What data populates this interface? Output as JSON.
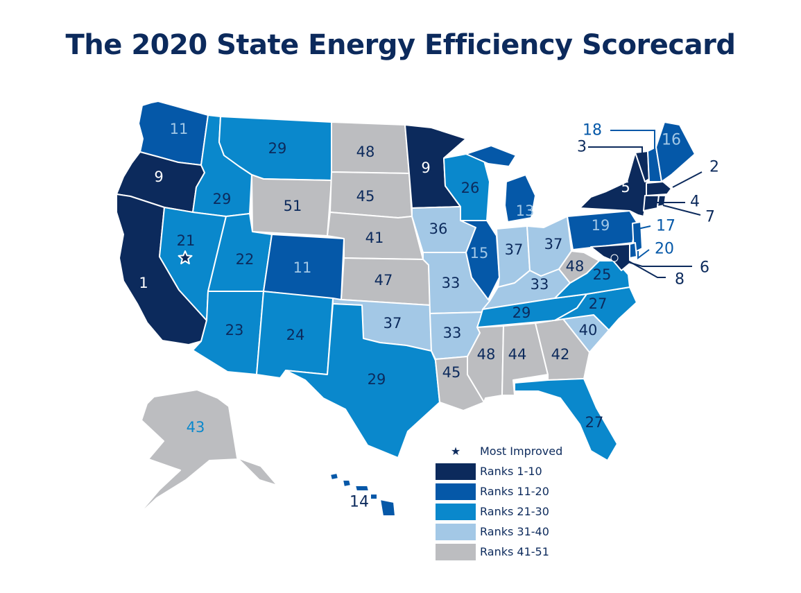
{
  "title": "The 2020 State Energy Efficiency Scorecard",
  "colors": {
    "rank_1_10": "#0c2a5c",
    "rank_11_20": "#0558a8",
    "rank_21_30": "#0a88cc",
    "rank_31_40": "#a3c8e6",
    "rank_41_51": "#bcbdc0",
    "outline": "#ffffff",
    "title": "#0c2a5c"
  },
  "legend": {
    "most_improved": "Most Improved",
    "items": [
      {
        "label": "Ranks 1-10",
        "color": "#0c2a5c"
      },
      {
        "label": "Ranks 11-20",
        "color": "#0558a8"
      },
      {
        "label": "Ranks 21-30",
        "color": "#0a88cc"
      },
      {
        "label": "Ranks 31-40",
        "color": "#a3c8e6"
      },
      {
        "label": "Ranks 41-51",
        "color": "#bcbdc0"
      }
    ]
  },
  "most_improved_state": "NV",
  "states": {
    "WA": {
      "rank": "11",
      "tier": "rank_11_20"
    },
    "OR": {
      "rank": "9",
      "tier": "rank_1_10"
    },
    "CA": {
      "rank": "1",
      "tier": "rank_1_10"
    },
    "ID": {
      "rank": "29",
      "tier": "rank_21_30"
    },
    "NV": {
      "rank": "21",
      "tier": "rank_21_30"
    },
    "MT": {
      "rank": "29",
      "tier": "rank_21_30"
    },
    "WY": {
      "rank": "51",
      "tier": "rank_41_51"
    },
    "UT": {
      "rank": "22",
      "tier": "rank_21_30"
    },
    "CO": {
      "rank": "11",
      "tier": "rank_11_20"
    },
    "AZ": {
      "rank": "23",
      "tier": "rank_21_30"
    },
    "NM": {
      "rank": "24",
      "tier": "rank_21_30"
    },
    "ND": {
      "rank": "48",
      "tier": "rank_41_51"
    },
    "SD": {
      "rank": "45",
      "tier": "rank_41_51"
    },
    "NE": {
      "rank": "41",
      "tier": "rank_41_51"
    },
    "KS": {
      "rank": "47",
      "tier": "rank_41_51"
    },
    "OK": {
      "rank": "37",
      "tier": "rank_31_40"
    },
    "TX": {
      "rank": "29",
      "tier": "rank_21_30"
    },
    "MN": {
      "rank": "9",
      "tier": "rank_1_10"
    },
    "IA": {
      "rank": "36",
      "tier": "rank_31_40"
    },
    "MO": {
      "rank": "33",
      "tier": "rank_31_40"
    },
    "AR": {
      "rank": "33",
      "tier": "rank_31_40"
    },
    "LA": {
      "rank": "45",
      "tier": "rank_41_51"
    },
    "WI": {
      "rank": "26",
      "tier": "rank_21_30"
    },
    "IL": {
      "rank": "15",
      "tier": "rank_11_20"
    },
    "MI": {
      "rank": "13",
      "tier": "rank_11_20"
    },
    "IN": {
      "rank": "37",
      "tier": "rank_31_40"
    },
    "OH": {
      "rank": "37",
      "tier": "rank_31_40"
    },
    "KY": {
      "rank": "33",
      "tier": "rank_31_40"
    },
    "TN": {
      "rank": "29",
      "tier": "rank_21_30"
    },
    "MS": {
      "rank": "48",
      "tier": "rank_41_51"
    },
    "AL": {
      "rank": "44",
      "tier": "rank_41_51"
    },
    "GA": {
      "rank": "42",
      "tier": "rank_41_51"
    },
    "FL": {
      "rank": "27",
      "tier": "rank_21_30"
    },
    "SC": {
      "rank": "40",
      "tier": "rank_31_40"
    },
    "NC": {
      "rank": "27",
      "tier": "rank_21_30"
    },
    "VA": {
      "rank": "25",
      "tier": "rank_21_30"
    },
    "WV": {
      "rank": "48",
      "tier": "rank_41_51"
    },
    "PA": {
      "rank": "19",
      "tier": "rank_11_20"
    },
    "NY": {
      "rank": "5",
      "tier": "rank_1_10"
    },
    "VT": {
      "rank": "3",
      "tier": "rank_1_10"
    },
    "NH": {
      "rank": "18",
      "tier": "rank_11_20"
    },
    "ME": {
      "rank": "16",
      "tier": "rank_11_20"
    },
    "MA": {
      "rank": "2",
      "tier": "rank_1_10"
    },
    "CT": {
      "rank": "4",
      "tier": "rank_1_10"
    },
    "RI": {
      "rank": "7",
      "tier": "rank_1_10"
    },
    "NJ": {
      "rank": "17",
      "tier": "rank_11_20"
    },
    "DE": {
      "rank": "20",
      "tier": "rank_11_20"
    },
    "MD": {
      "rank": "8",
      "tier": "rank_1_10"
    },
    "DC": {
      "rank": "6",
      "tier": "rank_1_10"
    },
    "AK": {
      "rank": "43",
      "tier": "rank_41_51"
    },
    "HI": {
      "rank": "14",
      "tier": "rank_11_20"
    }
  }
}
